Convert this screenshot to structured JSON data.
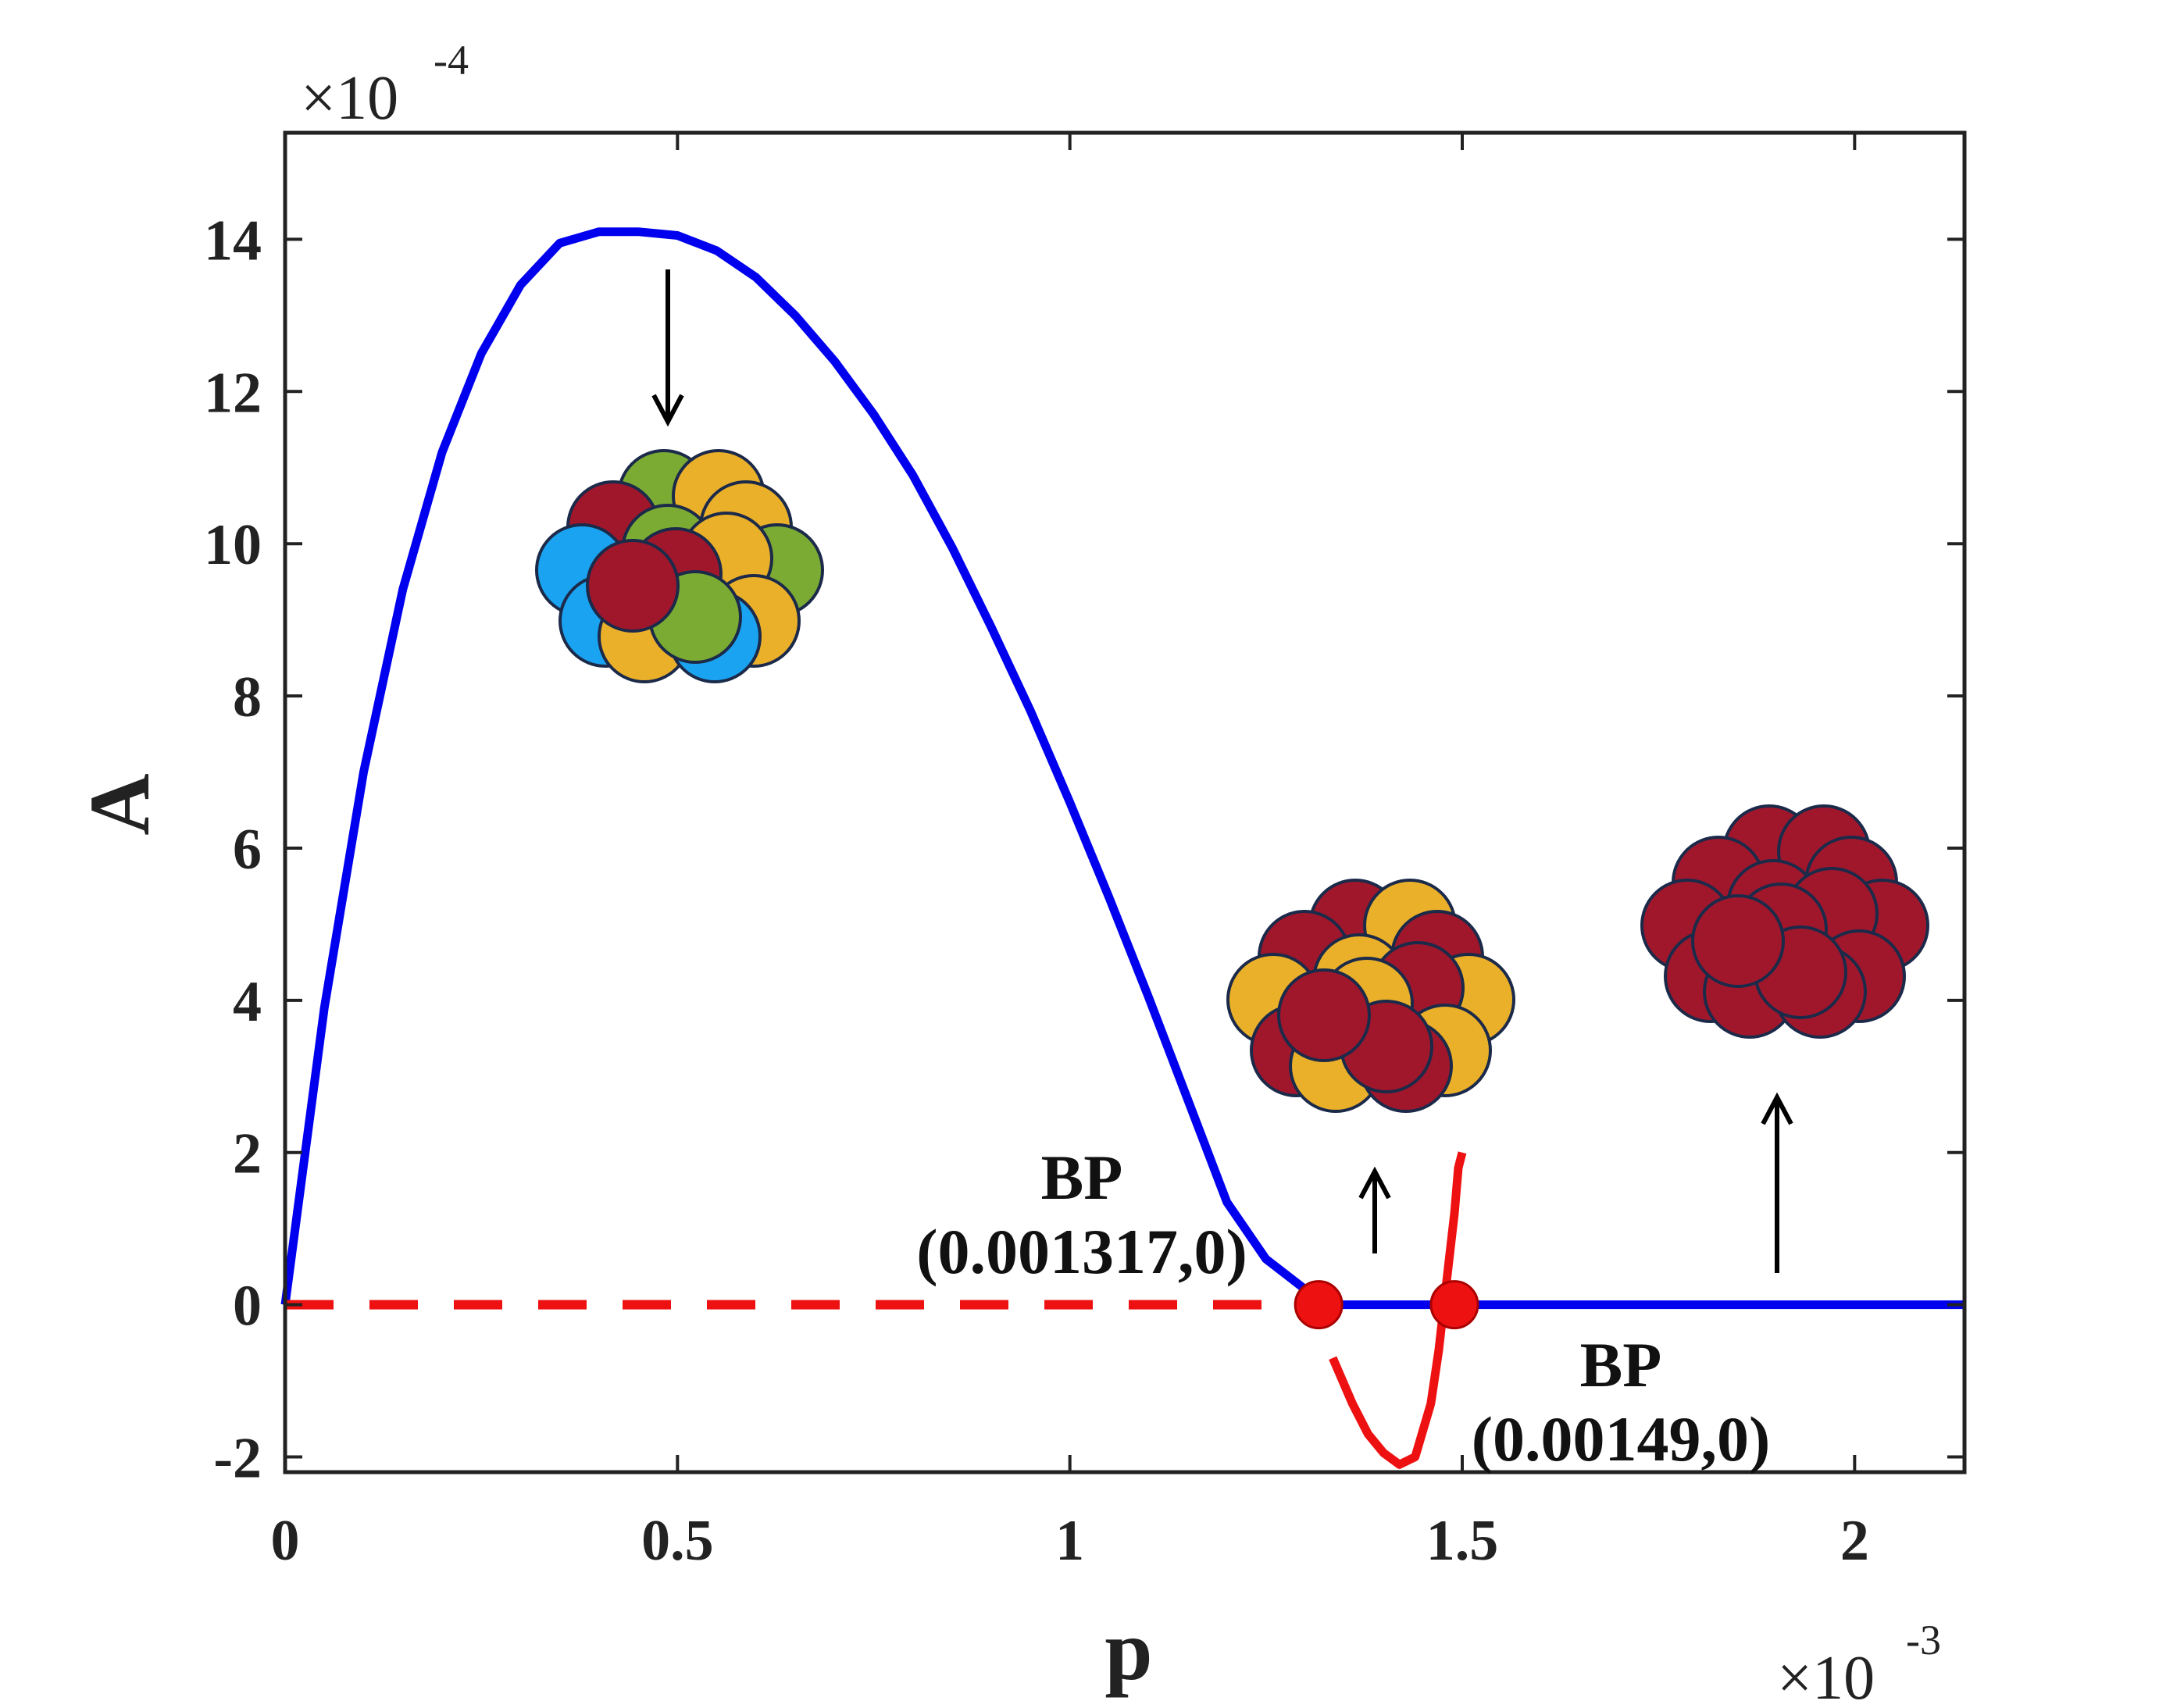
{
  "chart_data": {
    "type": "line",
    "title": "",
    "xlabel": "p",
    "ylabel": "A",
    "x_multiplier": "×10",
    "x_multiplier_exp": "-3",
    "y_multiplier": "×10",
    "y_multiplier_exp": "-4",
    "xlim": [
      0,
      2.14
    ],
    "ylim": [
      -2.2,
      15.4
    ],
    "xticks": [
      {
        "value": 0,
        "label": "0"
      },
      {
        "value": 0.5,
        "label": "0.5"
      },
      {
        "value": 1,
        "label": "1"
      },
      {
        "value": 1.5,
        "label": "1.5"
      },
      {
        "value": 2,
        "label": "2"
      }
    ],
    "yticks": [
      {
        "value": -2,
        "label": "-2"
      },
      {
        "value": 0,
        "label": "0"
      },
      {
        "value": 2,
        "label": "2"
      },
      {
        "value": 4,
        "label": "4"
      },
      {
        "value": 6,
        "label": "6"
      },
      {
        "value": 8,
        "label": "8"
      },
      {
        "value": 10,
        "label": "10"
      },
      {
        "value": 12,
        "label": "12"
      },
      {
        "value": 14,
        "label": "14"
      }
    ],
    "grid": false,
    "series": [
      {
        "name": "stable-coexistence-branch",
        "color": "#0000ee",
        "style": "solid",
        "x": [
          0,
          0.05,
          0.1,
          0.15,
          0.2,
          0.25,
          0.3,
          0.35,
          0.4,
          0.45,
          0.5,
          0.55,
          0.6,
          0.65,
          0.7,
          0.75,
          0.8,
          0.85,
          0.9,
          0.95,
          1.0,
          1.05,
          1.1,
          1.15,
          1.2,
          1.25,
          1.3,
          1.317
        ],
        "y": [
          0,
          3.9,
          7.0,
          9.4,
          11.2,
          12.5,
          13.4,
          13.95,
          14.1,
          14.1,
          14.05,
          13.85,
          13.5,
          13.0,
          12.4,
          11.7,
          10.9,
          9.95,
          8.9,
          7.8,
          6.6,
          5.35,
          4.05,
          2.7,
          1.35,
          0.6,
          0.2,
          0
        ]
      },
      {
        "name": "stable-zero-branch",
        "color": "#0000ee",
        "style": "solid",
        "x": [
          1.317,
          2.14
        ],
        "y": [
          0,
          0
        ]
      },
      {
        "name": "unstable-zero-branch",
        "color": "#ee1111",
        "style": "dashed",
        "x": [
          0,
          1.317
        ],
        "y": [
          0,
          0
        ]
      },
      {
        "name": "unstable-negative-branch",
        "color": "#ee1111",
        "style": "solid",
        "x": [
          1.335,
          1.36,
          1.38,
          1.4,
          1.42,
          1.44,
          1.46,
          1.47,
          1.48,
          1.49,
          1.495,
          1.5
        ],
        "y": [
          -0.7,
          -1.3,
          -1.7,
          -1.95,
          -2.1,
          -2.0,
          -1.3,
          -0.6,
          0.3,
          1.2,
          1.8,
          2.0
        ]
      }
    ],
    "points": [
      {
        "name": "BP",
        "label_line1": "BP",
        "label_line2": "(0.001317,0)",
        "x": 1.317,
        "y": 0,
        "color": "#ee1111"
      },
      {
        "name": "BP",
        "label_line1": "BP",
        "label_line2": "(0.00149,0)",
        "x": 1.49,
        "y": 0,
        "color": "#ee1111"
      }
    ],
    "annotations": [
      {
        "name": "mixed-four-type-cluster",
        "arrow": "down",
        "colors": [
          "#1aa3f0",
          "#7bab33",
          "#eab02a",
          "#a0172c"
        ]
      },
      {
        "name": "mixed-two-type-cluster",
        "arrow": "up",
        "colors": [
          "#eab02a",
          "#a0172c"
        ]
      },
      {
        "name": "single-type-cluster",
        "arrow": "up",
        "colors": [
          "#a0172c"
        ]
      }
    ]
  }
}
